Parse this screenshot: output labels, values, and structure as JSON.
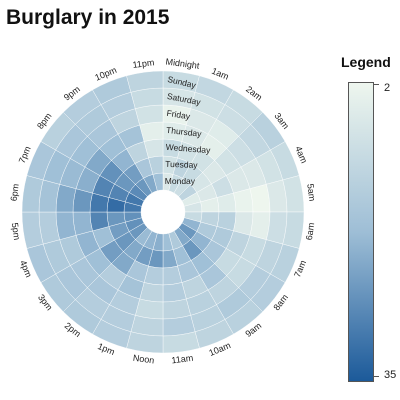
{
  "title": "Burglary in 2015",
  "legend": {
    "title": "Legend",
    "min_label": "2",
    "max_label": "35",
    "low_color": "#eef6ee",
    "high_color": "#1c5a9a"
  },
  "chart_data": {
    "type": "heatmap",
    "subtype": "radial",
    "title": "Burglary in 2015",
    "hour_labels": [
      "Midnight",
      "1am",
      "2am",
      "3am",
      "4am",
      "5am",
      "6am",
      "7am",
      "8am",
      "9am",
      "10am",
      "11am",
      "Noon",
      "1pm",
      "2pm",
      "3pm",
      "4pm",
      "5pm",
      "6pm",
      "7pm",
      "8pm",
      "9pm",
      "10pm",
      "11pm"
    ],
    "day_labels": [
      "Monday",
      "Tuesday",
      "Wednesday",
      "Thursday",
      "Friday",
      "Saturday",
      "Sunday"
    ],
    "value_range": [
      2,
      35
    ],
    "values": [
      [
        6,
        10,
        9,
        12,
        5,
        7,
        10,
        20,
        25,
        22,
        15,
        18,
        21,
        20,
        19,
        25,
        26,
        26,
        30,
        30,
        27,
        25,
        22,
        18
      ],
      [
        8,
        12,
        10,
        7,
        6,
        4,
        12,
        15,
        20,
        25,
        18,
        22,
        25,
        24,
        22,
        25,
        24,
        25,
        32,
        28,
        25,
        24,
        16,
        13
      ],
      [
        10,
        8,
        8,
        6,
        9,
        5,
        13,
        15,
        16,
        18,
        16,
        14,
        14,
        16,
        22,
        24,
        18,
        28,
        30,
        28,
        26,
        20,
        12,
        7
      ],
      [
        5,
        6,
        4,
        8,
        6,
        3,
        6,
        12,
        10,
        16,
        12,
        14,
        12,
        17,
        14,
        18,
        20,
        20,
        25,
        21,
        22,
        18,
        17,
        4
      ],
      [
        3,
        6,
        5,
        9,
        6,
        2,
        4,
        10,
        10,
        12,
        13,
        12,
        10,
        14,
        16,
        16,
        15,
        20,
        22,
        19,
        18,
        16,
        12,
        8
      ],
      [
        7,
        8,
        9,
        11,
        8,
        6,
        9,
        12,
        14,
        15,
        13,
        14,
        12,
        14,
        14,
        16,
        15,
        14,
        17,
        18,
        16,
        15,
        14,
        10
      ],
      [
        10,
        11,
        10,
        13,
        10,
        8,
        10,
        13,
        14,
        13,
        12,
        10,
        12,
        14,
        15,
        15,
        16,
        14,
        15,
        16,
        13,
        14,
        15,
        12
      ]
    ]
  }
}
